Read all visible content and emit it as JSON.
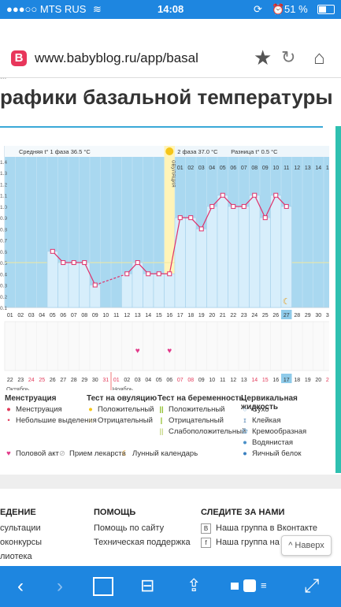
{
  "status": {
    "carrier": "●●●○○ MTS RUS",
    "time": "14:08",
    "battery": "51 %"
  },
  "browser": {
    "url": "www.babyblog.ru/app/basal",
    "logo": "B"
  },
  "page": {
    "breadcrumb": "...",
    "title": "рафики базальной температуры"
  },
  "chart_data": {
    "type": "line",
    "title": "",
    "phase1_label": "Средняя t° 1 фаза 36.5 °C",
    "phase2_label": "2 фаза 37.0 °C",
    "diff_label": "Разница t° 0.5 °C",
    "ovulation_label": "овуляция",
    "y_ticks": [
      "1.4",
      "1.3",
      "1.2",
      "1.1",
      "1.0",
      "0.9",
      "0.8",
      "0.7",
      "0.6",
      "0.5",
      "0.4",
      "0.3",
      "0.2",
      "0.1"
    ],
    "top_days": [
      "01",
      "02",
      "03",
      "04",
      "05",
      "06",
      "07",
      "08",
      "09",
      "10",
      "11",
      "12",
      "13",
      "14",
      "15"
    ],
    "x": [
      "01",
      "02",
      "03",
      "04",
      "05",
      "06",
      "07",
      "08",
      "09",
      "10",
      "11",
      "12",
      "13",
      "14",
      "15",
      "16",
      "17",
      "18",
      "19",
      "20",
      "21",
      "22",
      "23",
      "24",
      "25",
      "26",
      "27",
      "28",
      "29",
      "30",
      "31"
    ],
    "temps": [
      null,
      null,
      null,
      null,
      0.6,
      0.5,
      0.5,
      0.5,
      0.3,
      null,
      null,
      0.4,
      0.5,
      0.4,
      0.4,
      0.4,
      0.9,
      0.9,
      0.8,
      1.0,
      1.1,
      1.0,
      1.0,
      1.1,
      0.9,
      1.1,
      1.0,
      null,
      null,
      null,
      null
    ],
    "ylim": [
      0.1,
      1.4
    ],
    "dates": [
      "22",
      "23",
      "24",
      "25",
      "26",
      "27",
      "28",
      "29",
      "30",
      "31",
      "01",
      "02",
      "03",
      "04",
      "05",
      "06",
      "07",
      "08",
      "09",
      "10",
      "11",
      "12",
      "13",
      "14",
      "15",
      "16",
      "17",
      "18",
      "19",
      "20",
      "21"
    ],
    "month1": "Октябрь",
    "month2": "Ноябрь",
    "intercourse_days": [
      "13",
      "16"
    ],
    "highlight_day": "27",
    "ovulation_day": "16",
    "moon_day": "27"
  },
  "legend": {
    "menstruation": {
      "header": "Менструация",
      "items": [
        "Менструация",
        "Небольшие выделения"
      ]
    },
    "ovulation_test": {
      "header": "Тест на овуляцию",
      "items": [
        "Положительный",
        "Отрицательный"
      ]
    },
    "pregnancy_test": {
      "header": "Тест на беременность",
      "items": [
        "Положительный",
        "Отрицательный",
        "Слабоположительный"
      ]
    },
    "cervical": {
      "header": "Цервикальная жидкость",
      "items": [
        "Сухо",
        "Клейкая",
        "Кремообразная",
        "Водянистая",
        "Яичный белок"
      ]
    },
    "bottom": [
      "Половой акт",
      "Прием лекарств",
      "Лунный календарь"
    ]
  },
  "footer": {
    "col1": {
      "header": "ЕДЕНИЕ",
      "items": [
        "сультации",
        "оконкурсы",
        "лиотека"
      ]
    },
    "col2": {
      "header": "ПОМОЩЬ",
      "items": [
        "Помощь по сайту",
        "Техническая поддержка"
      ]
    },
    "col3": {
      "header": "СЛЕДИТЕ ЗА НАМИ",
      "items": [
        "Наша группа в Вконтакте",
        "Наша группа на Фей"
      ]
    },
    "back_top": "Наверх"
  }
}
